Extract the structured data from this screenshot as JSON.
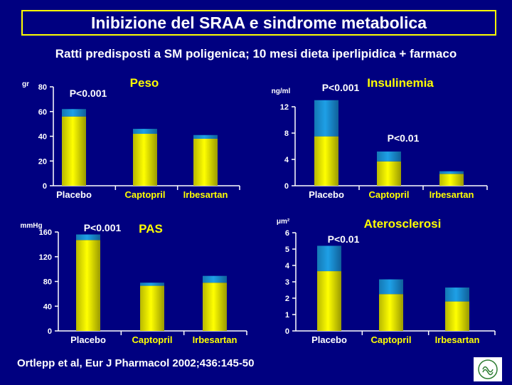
{
  "title": "Inibizione del SRAA e sindrome metabolica",
  "subtitle": "Ratti predisposti a SM poligenica; 10 mesi dieta iperlipidica + farmaco",
  "citation": "Ortlepp  et al, Eur J Pharmacol  2002;436:145-50",
  "colors": {
    "background": "#000080",
    "title_border": "#FFFF00",
    "bar_base": "#FFFF00",
    "bar_top": "#1EA0E6",
    "chart_title": "#FFFF00",
    "text": "#FFFFFF"
  },
  "chart_data": [
    {
      "type": "bar",
      "stacked": true,
      "title": "Peso",
      "unit_label": "gr",
      "categories": [
        "Placebo",
        "Captopril",
        "Irbesartan"
      ],
      "series": [
        {
          "values": [
            56,
            42,
            38
          ]
        },
        {
          "values": [
            6,
            4,
            3
          ]
        }
      ],
      "yticks": [
        "80",
        "60",
        "40",
        "20",
        "0"
      ],
      "ylim": [
        0,
        80
      ],
      "annotations": [
        {
          "text": "P<0.001",
          "category": 0
        }
      ]
    },
    {
      "type": "bar",
      "stacked": true,
      "title": "Insulinemia",
      "unit_label": "ng/ml",
      "categories": [
        "Placebo",
        "Captopril",
        "Irbesartan"
      ],
      "series": [
        {
          "values": [
            7.5,
            3.7,
            1.8
          ]
        },
        {
          "values": [
            5.5,
            1.5,
            0.4
          ]
        }
      ],
      "yticks": [
        "12",
        "8",
        "4",
        "0"
      ],
      "ylim": [
        0,
        12
      ],
      "annotations": [
        {
          "text": "P<0.001",
          "category": 0
        },
        {
          "text": "P<0.01",
          "category": 1
        }
      ]
    },
    {
      "type": "bar",
      "stacked": true,
      "title": "PAS",
      "unit_label": "mmHg",
      "categories": [
        "Placebo",
        "Captopril",
        "Irbesartan"
      ],
      "series": [
        {
          "values": [
            147,
            73,
            78
          ]
        },
        {
          "values": [
            9,
            5,
            11
          ]
        }
      ],
      "yticks": [
        "160",
        "120",
        "80",
        "40",
        "0"
      ],
      "ylim": [
        0,
        160
      ],
      "annotations": [
        {
          "text": "P<0.001",
          "category": 0
        }
      ]
    },
    {
      "type": "bar",
      "stacked": true,
      "title": "Aterosclerosi",
      "unit_label": "μm²",
      "categories": [
        "Placebo",
        "Captopril",
        "Irbesartan"
      ],
      "series": [
        {
          "values": [
            3.65,
            2.25,
            1.8
          ]
        },
        {
          "values": [
            1.55,
            0.9,
            0.85
          ]
        }
      ],
      "yticks": [
        "6",
        "5",
        "4",
        "3",
        "2",
        "1",
        "0"
      ],
      "ylim": [
        0,
        6
      ],
      "annotations": [
        {
          "text": "P<0.01",
          "category": 0
        }
      ]
    }
  ]
}
